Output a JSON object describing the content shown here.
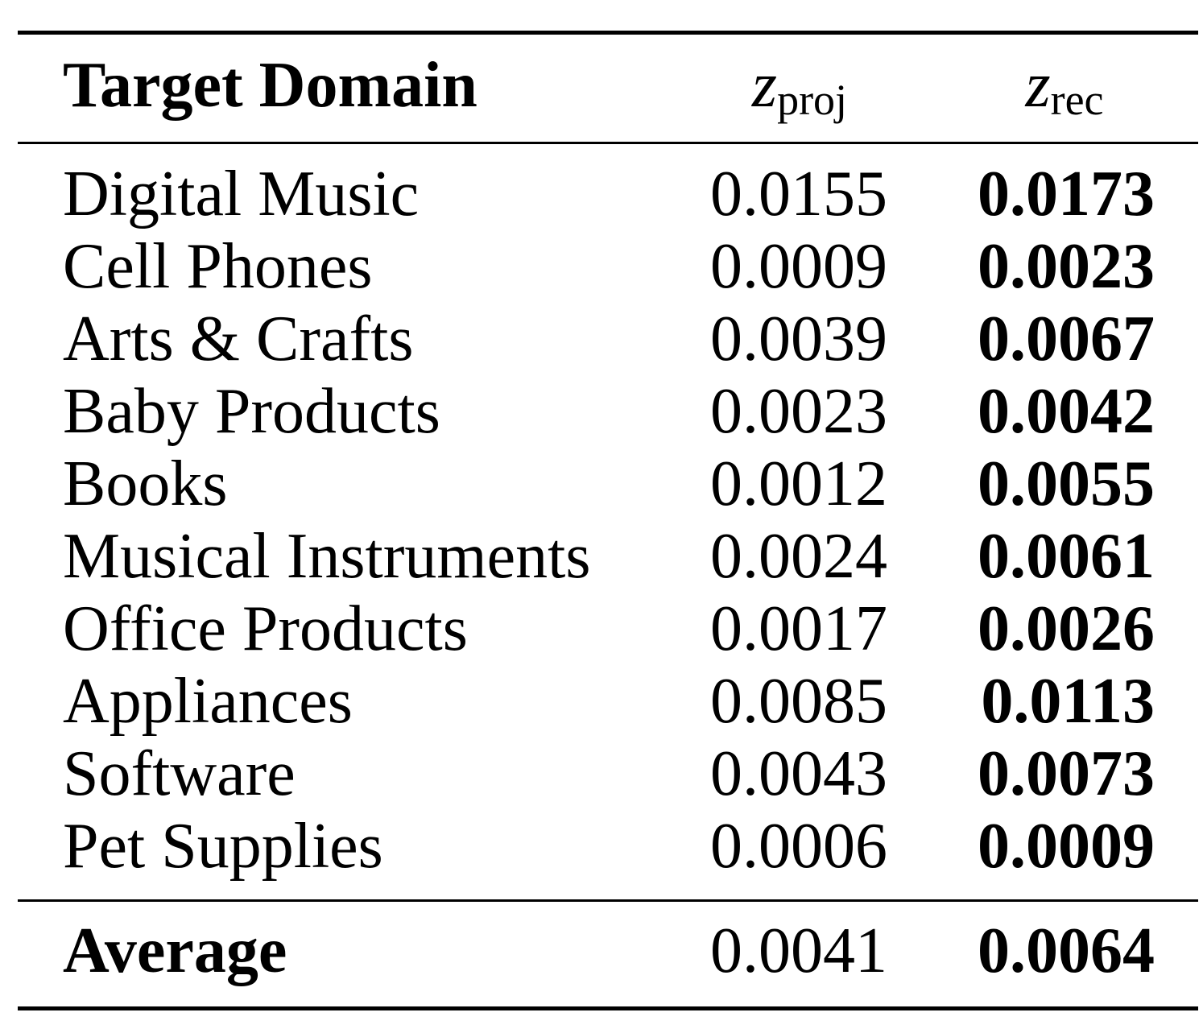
{
  "table": {
    "header": {
      "domain": "Target Domain",
      "columns": [
        {
          "symbol": "z",
          "subscript": "proj"
        },
        {
          "symbol": "z",
          "subscript": "rec"
        }
      ]
    },
    "rows": [
      [
        "Digital Music",
        "0.0155",
        "0.0173"
      ],
      [
        "Cell Phones",
        "0.0009",
        "0.0023"
      ],
      [
        "Arts & Crafts",
        "0.0039",
        "0.0067"
      ],
      [
        "Baby Products",
        "0.0023",
        "0.0042"
      ],
      [
        "Books",
        "0.0012",
        "0.0055"
      ],
      [
        "Musical Instruments",
        "0.0024",
        "0.0061"
      ],
      [
        "Office Products",
        "0.0017",
        "0.0026"
      ],
      [
        "Appliances",
        "0.0085",
        "0.0113"
      ],
      [
        "Software",
        "0.0043",
        "0.0073"
      ],
      [
        "Pet Supplies",
        "0.0006",
        "0.0009"
      ]
    ],
    "average": [
      "Average",
      "0.0041",
      "0.0064"
    ]
  }
}
